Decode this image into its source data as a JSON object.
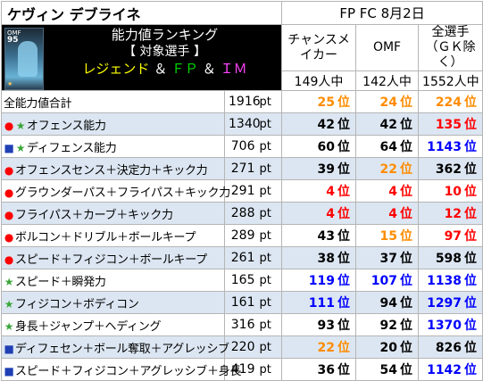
{
  "header": {
    "player_name": "ケヴィン デブライネ",
    "date_label": "FP FC 8月2日"
  },
  "banner": {
    "card_position": "OMF",
    "card_rating": "95",
    "line1": "能力値ランキング",
    "line2": "【 対象選手 】",
    "legend": "レジェンド",
    "amp": "＆",
    "fp": "ＦＰ",
    "im": "ＩＭ"
  },
  "columns": [
    {
      "label": "チャンスメイカー",
      "count": "149人中"
    },
    {
      "label": "OMF",
      "count": "142人中"
    },
    {
      "label": "全選手（ＧＫ除く）",
      "count": "1552人中"
    }
  ],
  "unit_label": "pt",
  "rank_suffix": "位",
  "colors": {
    "black": "#000000",
    "orange": "#ff8c00",
    "red": "#ff0000",
    "blue": "#0000ff",
    "green": "#3aa63a",
    "navy": "#1f3fb5",
    "alt_row": "#dce6f2"
  },
  "rows": [
    {
      "bullet": "",
      "bullet_color": "",
      "label": "全能力値合計",
      "value": "1916",
      "ranks": [
        {
          "v": "25",
          "c": "orange"
        },
        {
          "v": "24",
          "c": "orange"
        },
        {
          "v": "224",
          "c": "orange"
        }
      ]
    },
    {
      "bullet": "●★",
      "bullet_color": "red-green",
      "label": "オフェンス能力",
      "value": "1340",
      "ranks": [
        {
          "v": "42",
          "c": "black"
        },
        {
          "v": "42",
          "c": "black"
        },
        {
          "v": "135",
          "c": "red"
        }
      ]
    },
    {
      "bullet": "■★",
      "bullet_color": "navy-green",
      "label": "ディフェンス能力",
      "value": "706",
      "ranks": [
        {
          "v": "60",
          "c": "black"
        },
        {
          "v": "64",
          "c": "black"
        },
        {
          "v": "1143",
          "c": "blue"
        }
      ]
    },
    {
      "bullet": "●",
      "bullet_color": "red",
      "label": "オフェンスセンス＋決定力＋キック力",
      "value": "271",
      "ranks": [
        {
          "v": "39",
          "c": "black"
        },
        {
          "v": "22",
          "c": "orange"
        },
        {
          "v": "362",
          "c": "black"
        }
      ]
    },
    {
      "bullet": "●",
      "bullet_color": "red",
      "label": "グラウンダーパス＋フライパス＋キック力",
      "value": "291",
      "ranks": [
        {
          "v": "4",
          "c": "red"
        },
        {
          "v": "4",
          "c": "red"
        },
        {
          "v": "10",
          "c": "red"
        }
      ]
    },
    {
      "bullet": "●",
      "bullet_color": "red",
      "label": "フライパス＋カーブ＋キック力",
      "value": "288",
      "ranks": [
        {
          "v": "4",
          "c": "red"
        },
        {
          "v": "4",
          "c": "red"
        },
        {
          "v": "12",
          "c": "red"
        }
      ]
    },
    {
      "bullet": "●",
      "bullet_color": "red",
      "label": "ボルコン＋ドリブル＋ボールキープ",
      "value": "289",
      "ranks": [
        {
          "v": "43",
          "c": "black"
        },
        {
          "v": "15",
          "c": "orange"
        },
        {
          "v": "97",
          "c": "red"
        }
      ]
    },
    {
      "bullet": "●",
      "bullet_color": "red",
      "label": "スピード＋フィジコン＋ボールキープ",
      "value": "261",
      "ranks": [
        {
          "v": "38",
          "c": "black"
        },
        {
          "v": "37",
          "c": "black"
        },
        {
          "v": "598",
          "c": "black"
        }
      ]
    },
    {
      "bullet": "★",
      "bullet_color": "green",
      "label": "スピード＋瞬発力",
      "value": "165",
      "ranks": [
        {
          "v": "119",
          "c": "blue"
        },
        {
          "v": "107",
          "c": "blue"
        },
        {
          "v": "1138",
          "c": "blue"
        }
      ]
    },
    {
      "bullet": "★",
      "bullet_color": "green",
      "label": "フィジコン＋ボディコン",
      "value": "161",
      "ranks": [
        {
          "v": "111",
          "c": "blue"
        },
        {
          "v": "94",
          "c": "black"
        },
        {
          "v": "1297",
          "c": "blue"
        }
      ]
    },
    {
      "bullet": "★",
      "bullet_color": "green",
      "label": "身長＋ジャンプ＋ヘディング",
      "value": "316",
      "ranks": [
        {
          "v": "93",
          "c": "black"
        },
        {
          "v": "92",
          "c": "black"
        },
        {
          "v": "1370",
          "c": "blue"
        }
      ]
    },
    {
      "bullet": "■",
      "bullet_color": "navy",
      "label": "ディフェセン＋ボール奪取＋アグレッシブ",
      "value": "220",
      "ranks": [
        {
          "v": "22",
          "c": "orange"
        },
        {
          "v": "20",
          "c": "black"
        },
        {
          "v": "826",
          "c": "black"
        }
      ]
    },
    {
      "bullet": "■",
      "bullet_color": "navy",
      "label": "スピード＋フィジコン＋アグレッシブ＋身長",
      "value": "419",
      "ranks": [
        {
          "v": "36",
          "c": "black"
        },
        {
          "v": "54",
          "c": "black"
        },
        {
          "v": "1142",
          "c": "blue"
        }
      ]
    }
  ]
}
